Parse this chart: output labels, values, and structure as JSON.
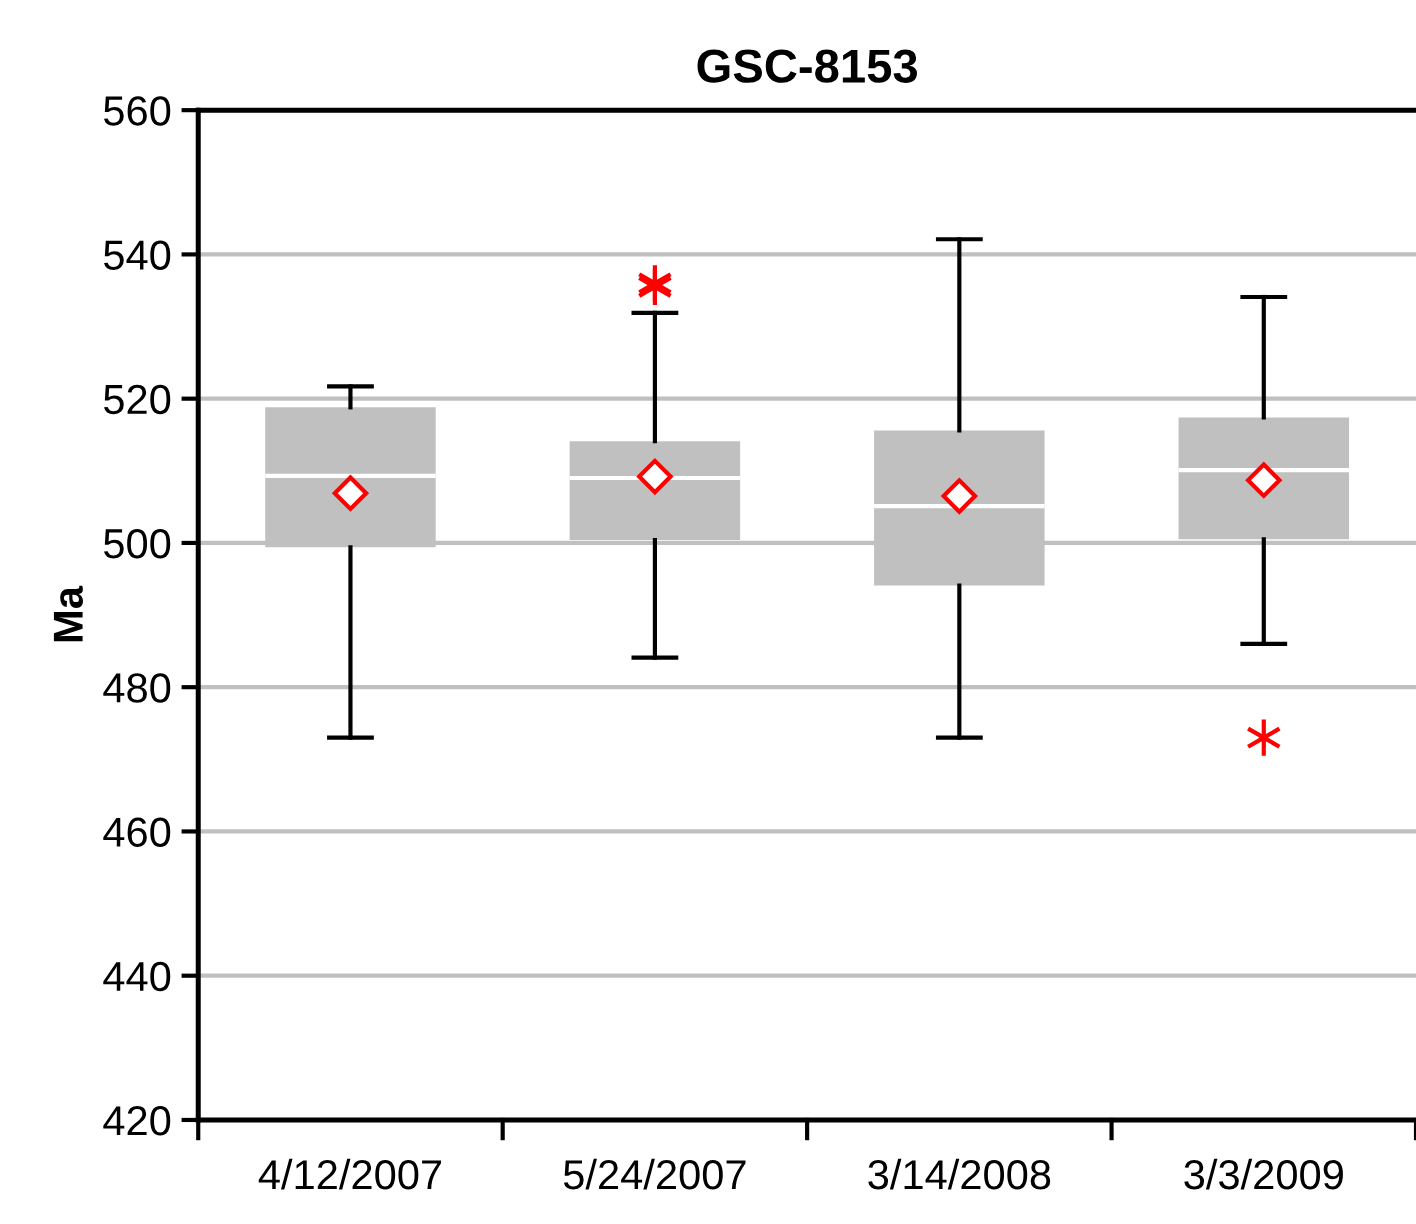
{
  "chart_data": {
    "type": "box",
    "title": "GSC-8153",
    "ylabel": "Ma",
    "categories": [
      "4/12/2007",
      "5/24/2007",
      "3/14/2008",
      "3/3/2009"
    ],
    "boxes": [
      {
        "low": 473.0,
        "q1": 499.4,
        "median": 509.3,
        "q3": 518.8,
        "high": 521.7,
        "mean": 506.9
      },
      {
        "low": 484.1,
        "q1": 500.4,
        "median": 509.0,
        "q3": 514.1,
        "high": 531.9,
        "mean": 509.2,
        "outliers": [
          536.0,
          535.5
        ]
      },
      {
        "low": 473.0,
        "q1": 494.1,
        "median": 505.1,
        "q3": 515.6,
        "high": 542.1,
        "mean": 506.5
      },
      {
        "low": 486.0,
        "q1": 500.5,
        "median": 510.1,
        "q3": 517.4,
        "high": 534.1,
        "mean": 508.7,
        "outliers": [
          473.0
        ]
      }
    ],
    "color": "#c0c0c0",
    "ylim": [
      420,
      560
    ],
    "yticks": [
      420,
      440,
      460,
      480,
      500,
      520,
      540,
      560
    ],
    "grid": "y"
  }
}
